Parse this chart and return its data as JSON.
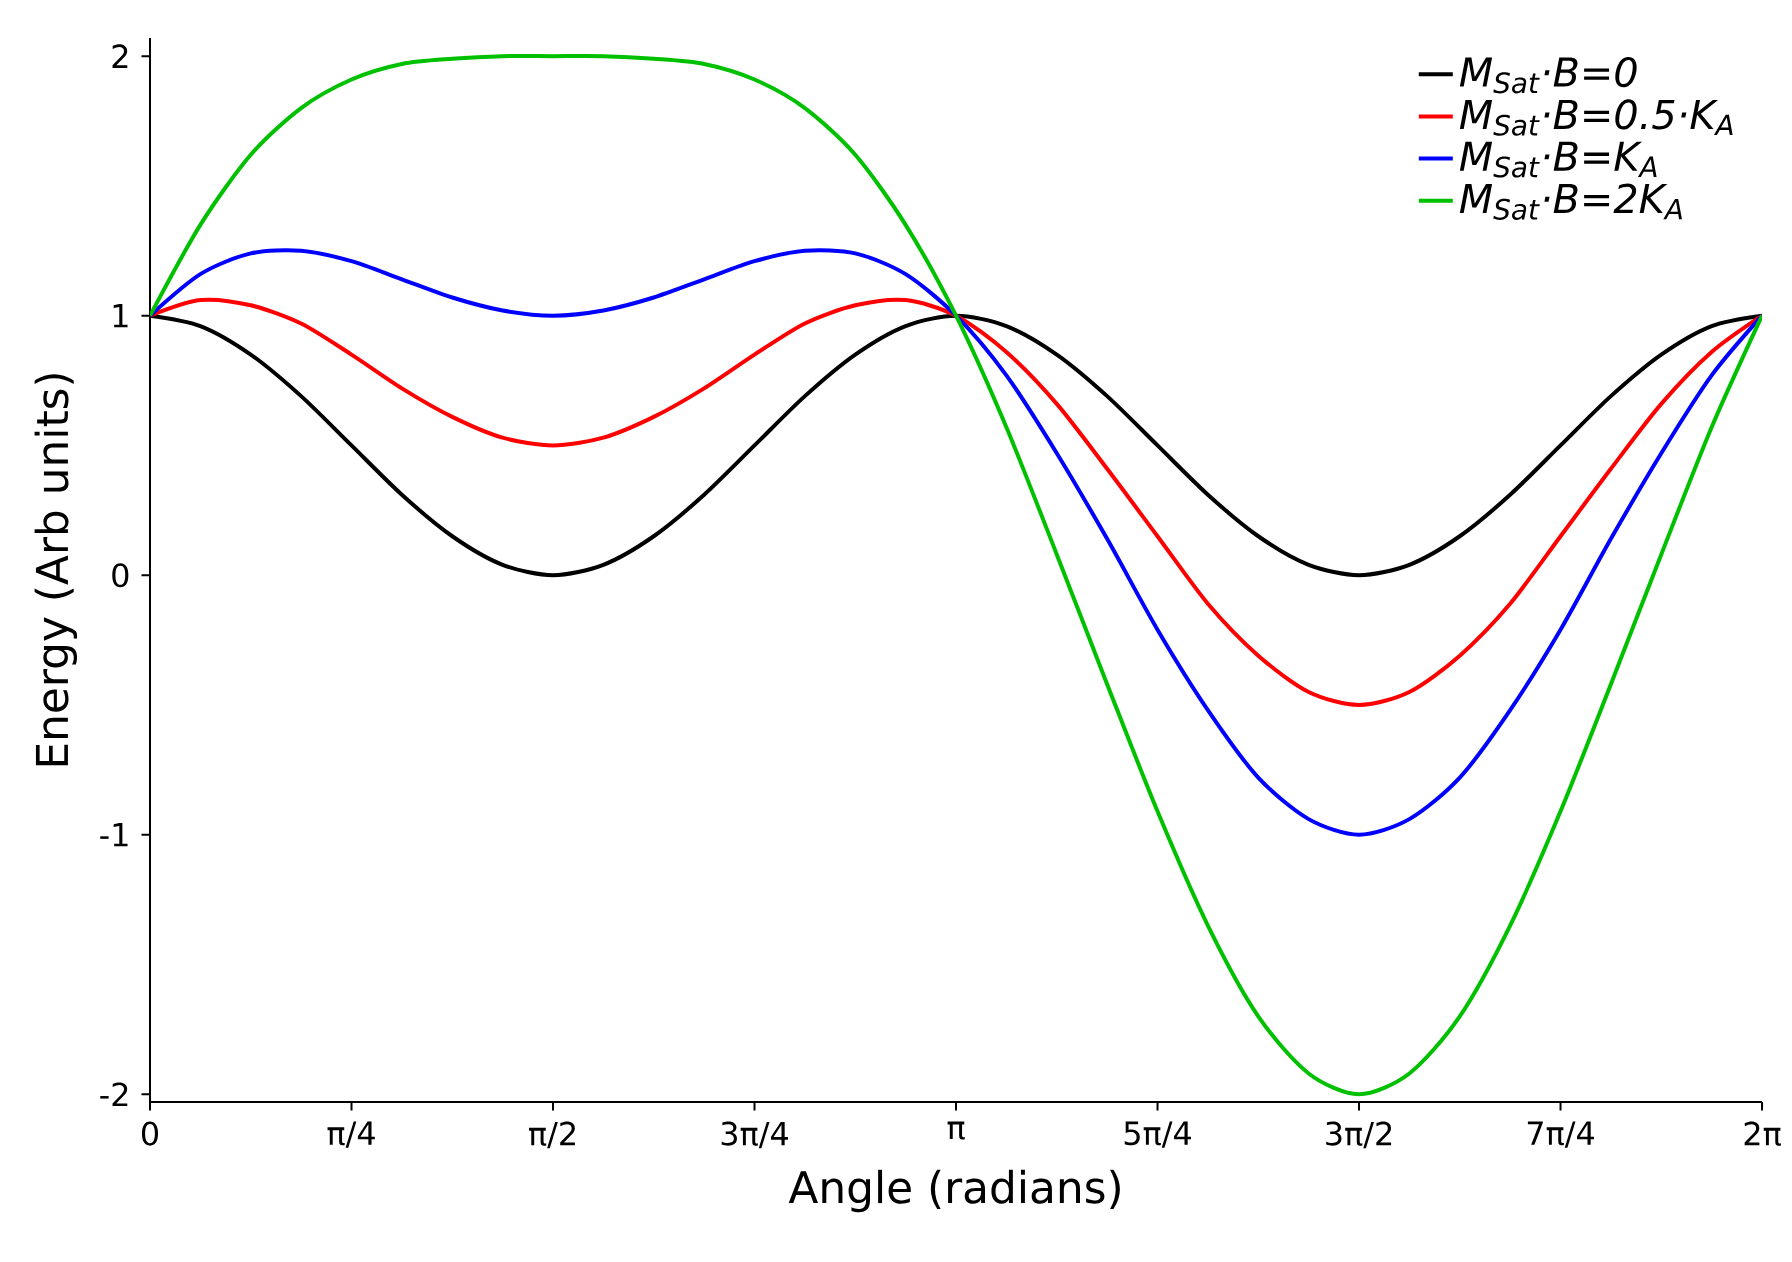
{
  "chart_data": {
    "type": "line",
    "xlabel": "Angle (radians)",
    "ylabel": "Energy (Arb units)",
    "x": [
      0,
      0.1963,
      0.3927,
      0.589,
      0.7854,
      0.9817,
      1.1781,
      1.3744,
      1.5708,
      1.7671,
      1.9635,
      2.1598,
      2.3562,
      2.5525,
      2.7489,
      2.9452,
      3.1416,
      3.3379,
      3.5343,
      3.7306,
      3.927,
      4.1233,
      4.3197,
      4.516,
      4.7124,
      4.9087,
      5.1051,
      5.3014,
      5.4978,
      5.6941,
      5.8905,
      6.0868,
      6.2832
    ],
    "series": [
      {
        "name": "M$_{Sat}$·B=0",
        "color": "#000000",
        "values": [
          1,
          0.96,
          0.85,
          0.69,
          0.5,
          0.31,
          0.15,
          0.04,
          0,
          0.04,
          0.15,
          0.31,
          0.5,
          0.69,
          0.85,
          0.96,
          1,
          0.96,
          0.85,
          0.69,
          0.5,
          0.31,
          0.15,
          0.04,
          0,
          0.04,
          0.15,
          0.31,
          0.5,
          0.69,
          0.85,
          0.96,
          1
        ]
      },
      {
        "name": "M$_{Sat}$·B=0.5·K$_{A}$",
        "color": "#ff0000",
        "values": [
          1,
          1.06,
          1.04,
          0.97,
          0.85,
          0.72,
          0.61,
          0.53,
          0.5,
          0.53,
          0.61,
          0.72,
          0.85,
          0.97,
          1.04,
          1.06,
          1,
          0.86,
          0.66,
          0.41,
          0.15,
          -0.11,
          -0.31,
          -0.45,
          -0.5,
          -0.45,
          -0.31,
          -0.11,
          0.15,
          0.41,
          0.66,
          0.86,
          1
        ]
      },
      {
        "name": "M$_{Sat}$·B=K$_{A}$",
        "color": "#0000ff",
        "values": [
          1,
          1.16,
          1.24,
          1.25,
          1.21,
          1.14,
          1.07,
          1.02,
          1,
          1.02,
          1.07,
          1.14,
          1.21,
          1.25,
          1.24,
          1.16,
          1,
          0.77,
          0.47,
          0.14,
          -0.21,
          -0.52,
          -0.78,
          -0.94,
          -1,
          -0.94,
          -0.78,
          -0.52,
          -0.21,
          0.14,
          0.47,
          0.77,
          1
        ]
      },
      {
        "name": "M$_{Sat}$·B=2K$_{A}$",
        "color": "#00c000",
        "values": [
          1,
          1.35,
          1.62,
          1.8,
          1.91,
          1.97,
          1.99,
          2.0,
          2,
          2.0,
          1.99,
          1.97,
          1.91,
          1.8,
          1.62,
          1.35,
          1,
          0.57,
          0.08,
          -0.42,
          -0.91,
          -1.35,
          -1.7,
          -1.92,
          -2,
          -1.92,
          -1.7,
          -1.35,
          -0.91,
          -0.42,
          0.08,
          0.57,
          1
        ]
      }
    ],
    "xlim": [
      0,
      6.2832
    ],
    "xticks": [
      {
        "value": 0,
        "label": "0"
      },
      {
        "value": 0.7854,
        "label": "π/4"
      },
      {
        "value": 1.5708,
        "label": "π/2"
      },
      {
        "value": 2.3562,
        "label": "3π/4"
      },
      {
        "value": 3.1416,
        "label": "π"
      },
      {
        "value": 3.927,
        "label": "5π/4"
      },
      {
        "value": 4.7124,
        "label": "3π/2"
      },
      {
        "value": 5.4978,
        "label": "7π/4"
      },
      {
        "value": 6.2832,
        "label": "2π"
      }
    ],
    "ylim": [
      -2.03,
      2.07
    ],
    "yticks": [
      -2,
      -1,
      0,
      1,
      2
    ],
    "legend": "top right",
    "line_style": "solid",
    "grid": false
  }
}
